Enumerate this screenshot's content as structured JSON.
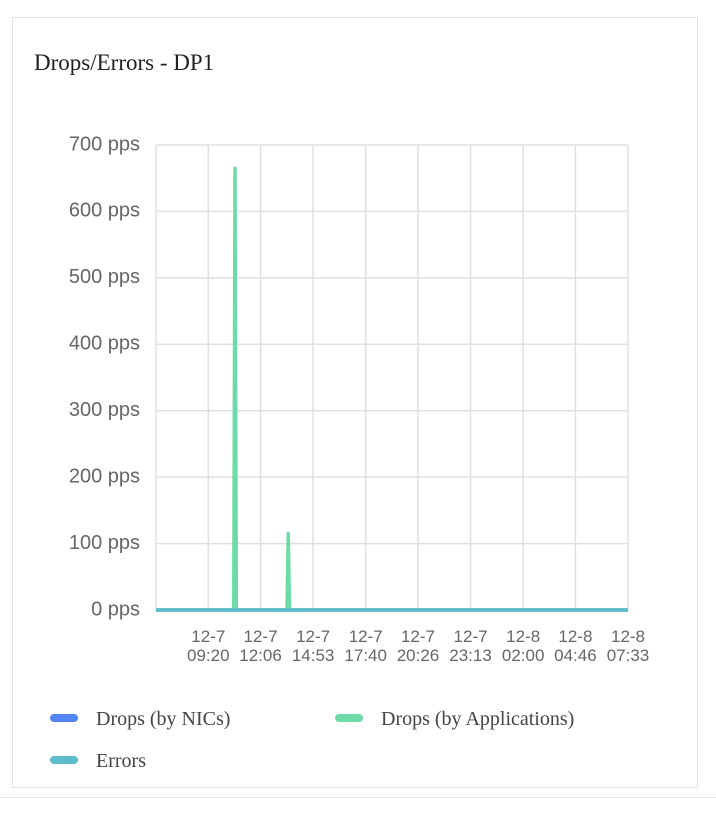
{
  "chart_data": {
    "type": "line",
    "title": "Drops/Errors - DP1",
    "x": [
      "12-7 06:34",
      "12-7 10:41",
      "12-7 10:45",
      "12-7 10:49",
      "12-7 13:30",
      "12-7 13:34",
      "12-7 13:38",
      "12-8 07:33"
    ],
    "series": [
      {
        "name": "Drops (by NICs)",
        "color": "#5286f5",
        "values": [
          0,
          0,
          0,
          0,
          0,
          0,
          0,
          0
        ]
      },
      {
        "name": "Drops (by Applications)",
        "color": "#6ddba8",
        "values": [
          0,
          0,
          665,
          0,
          0,
          115,
          0,
          0
        ]
      },
      {
        "name": "Errors",
        "color": "#5bbccc",
        "values": [
          0,
          0,
          0,
          0,
          0,
          0,
          0,
          0
        ]
      }
    ],
    "xlim": [
      "12-7 06:34",
      "12-8 07:33"
    ],
    "xticks": [
      "12-7 09:20",
      "12-7 12:06",
      "12-7 14:53",
      "12-7 17:40",
      "12-7 20:26",
      "12-7 23:13",
      "12-8 02:00",
      "12-8 04:46",
      "12-8 07:33"
    ],
    "ylim": [
      0,
      700
    ],
    "yticks": [
      {
        "value": 0,
        "label": "0 pps"
      },
      {
        "value": 100,
        "label": "100 pps"
      },
      {
        "value": 200,
        "label": "200 pps"
      },
      {
        "value": 300,
        "label": "300 pps"
      },
      {
        "value": 400,
        "label": "400 pps"
      },
      {
        "value": 500,
        "label": "500 pps"
      },
      {
        "value": 600,
        "label": "600 pps"
      },
      {
        "value": 700,
        "label": "700 pps"
      }
    ],
    "grid": true
  }
}
